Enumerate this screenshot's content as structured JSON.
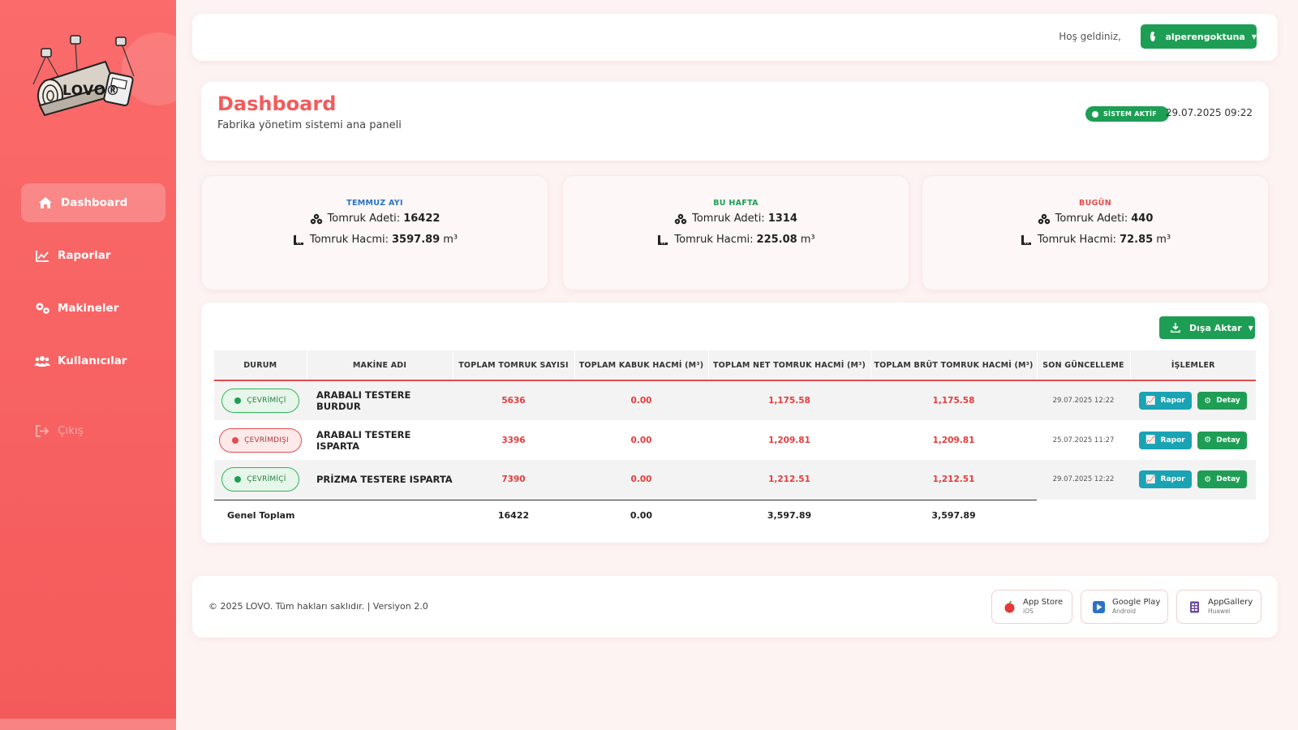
{
  "brand": {
    "name": "LOVO®"
  },
  "sidebar": {
    "items": [
      {
        "label": "Dashboard",
        "icon": "home-icon",
        "active": true
      },
      {
        "label": "Raporlar",
        "icon": "chart-line-icon"
      },
      {
        "label": "Makineler",
        "icon": "gears-icon"
      },
      {
        "label": "Kullanıcılar",
        "icon": "users-icon"
      },
      {
        "label": "Çıkış",
        "icon": "sign-out-icon"
      }
    ]
  },
  "topbar": {
    "welcome": "Hoş geldiniz,",
    "username": "alperengoktuna"
  },
  "dashboard": {
    "title": "Dashboard",
    "subtitle": "Fabrika yönetim sistemi ana paneli",
    "status_badge": "SİSTEM AKTİF",
    "datetime": "29.07.2025 09:22"
  },
  "stats": [
    {
      "label": "TEMMUZ AYI",
      "color": "#2a72c9",
      "count_label": "Tomruk Adeti:",
      "count": "16422",
      "volume_label": "Tomruk Hacmi:",
      "volume": "3597.89",
      "unit": "m³"
    },
    {
      "label": "BU HAFTA",
      "color": "#1e9e55",
      "count_label": "Tomruk Adeti:",
      "count": "1314",
      "volume_label": "Tomruk Hacmi:",
      "volume": "225.08",
      "unit": "m³"
    },
    {
      "label": "BUGÜN",
      "color": "#e34d4d",
      "count_label": "Tomruk Adeti:",
      "count": "440",
      "volume_label": "Tomruk Hacmi:",
      "volume": "72.85",
      "unit": "m³"
    }
  ],
  "table": {
    "export_label": "Dışa Aktar",
    "headers": [
      "DURUM",
      "MAKİNE ADI",
      "TOPLAM TOMRUK SAYISI",
      "TOPLAM KABUK HACMİ (M³)",
      "TOPLAM NET TOMRUK HACMİ (M³)",
      "TOPLAM BRÜT TOMRUK HACMİ (M³)",
      "SON GÜNCELLEME",
      "İŞLEMLER"
    ],
    "rows": [
      {
        "status": "ÇEVRİMİÇİ",
        "online": true,
        "name": "ARABALI TESTERE BURDUR",
        "count": "5636",
        "bark": "0.00",
        "net": "1,175.58",
        "gross": "1,175.58",
        "updated": "29.07.2025 12:22"
      },
      {
        "status": "ÇEVRİMDIŞI",
        "online": false,
        "name": "ARABALI TESTERE ISPARTA",
        "count": "3396",
        "bark": "0.00",
        "net": "1,209.81",
        "gross": "1,209.81",
        "updated": "25.07.2025 11:27"
      },
      {
        "status": "ÇEVRİMİÇİ",
        "online": true,
        "name": "PRİZMA TESTERE ISPARTA",
        "count": "7390",
        "bark": "0.00",
        "net": "1,212.51",
        "gross": "1,212.51",
        "updated": "29.07.2025 12:22"
      }
    ],
    "actions": {
      "report": "Rapor",
      "detail": "Detay"
    },
    "total": {
      "label": "Genel Toplam",
      "count": "16422",
      "bark": "0.00",
      "net": "3,597.89",
      "gross": "3,597.89"
    }
  },
  "footer": {
    "copyright": "© 2025 LOVO. Tüm hakları saklıdır. | Versiyon 2.0",
    "stores": [
      {
        "name": "App Store",
        "sub": "iOS",
        "icon": "apple-icon"
      },
      {
        "name": "Google Play",
        "sub": "Android",
        "icon": "google-play-icon"
      },
      {
        "name": "AppGallery",
        "sub": "Huawei",
        "icon": "appgallery-icon"
      }
    ]
  }
}
